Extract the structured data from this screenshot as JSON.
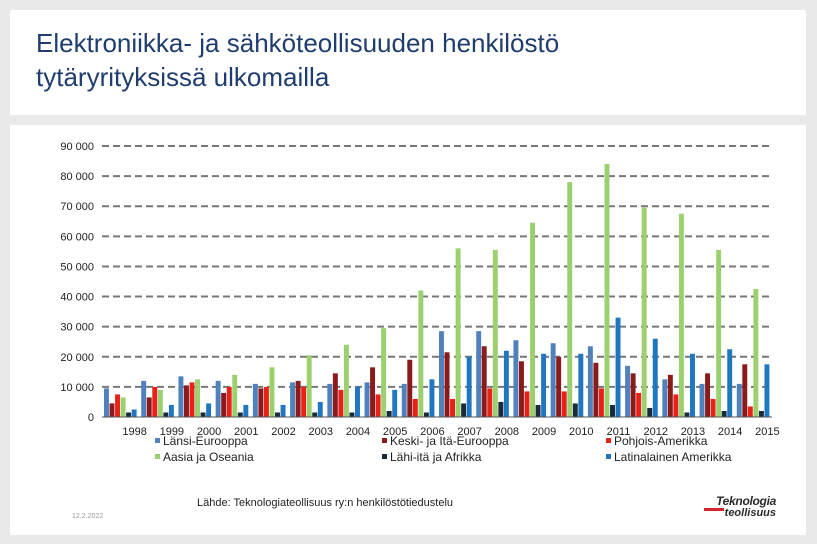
{
  "title_line1": "Elektroniikka- ja sähköteollisuuden henkilöstö",
  "title_line2": "tytäryrityksissä ulkomailla",
  "source": "Lähde: Teknologiateollisuus ry:n henkilöstötiedustelu",
  "date": "12.2.2022",
  "logo": {
    "line1": "Teknologia",
    "line2": "teollisuus"
  },
  "chart_data": {
    "type": "bar",
    "title": "",
    "xlabel": "",
    "ylabel": "",
    "ylim": [
      0,
      90000
    ],
    "yticks": [
      0,
      10000,
      20000,
      30000,
      40000,
      50000,
      60000,
      70000,
      80000,
      90000
    ],
    "ytick_labels": [
      "0",
      "10 000",
      "20 000",
      "30 000",
      "40 000",
      "50 000",
      "60 000",
      "70 000",
      "80 000",
      "90 000"
    ],
    "grid": true,
    "categories": [
      "1998",
      "1999",
      "2000",
      "2001",
      "2002",
      "2003",
      "2004",
      "2005",
      "2006",
      "2007",
      "2008",
      "2009",
      "2010",
      "2011",
      "2012",
      "2013",
      "2014",
      "2015"
    ],
    "series": [
      {
        "name": "Länsi-Eurooppa",
        "color": "#4f81bd",
        "values": [
          9500,
          12000,
          13500,
          12000,
          11000,
          11500,
          11000,
          11500,
          11000,
          28500,
          28500,
          25500,
          24500,
          23500,
          17000,
          12500,
          11000,
          11000
        ]
      },
      {
        "name": "Keski- ja Itä-Eurooppa",
        "color": "#8b1a1a",
        "values": [
          4500,
          6500,
          10500,
          8000,
          9500,
          12000,
          14500,
          16500,
          19000,
          21500,
          23500,
          18500,
          20000,
          18000,
          14500,
          14000,
          14500,
          17500
        ]
      },
      {
        "name": "Pohjois-Amerikka",
        "color": "#e8221b",
        "values": [
          7500,
          10000,
          11500,
          10000,
          10000,
          10000,
          9000,
          7500,
          6000,
          6000,
          9500,
          8500,
          8500,
          9500,
          8000,
          7500,
          6000,
          3500
        ]
      },
      {
        "name": "Aasia ja Oseania",
        "color": "#9bd06e",
        "values": [
          6500,
          9000,
          12500,
          14000,
          16500,
          20500,
          24000,
          29500,
          42000,
          56000,
          55500,
          64500,
          78000,
          84000,
          69500,
          67500,
          55500,
          42500
        ]
      },
      {
        "name": "Lähi-itä ja Afrikka",
        "color": "#1b2a3a",
        "values": [
          1500,
          1500,
          1500,
          1500,
          1500,
          1500,
          1500,
          2000,
          1500,
          4500,
          5000,
          4000,
          4500,
          4000,
          3000,
          1500,
          2000,
          2000
        ]
      },
      {
        "name": "Latinalainen Amerikka",
        "color": "#1f77c0",
        "values": [
          2500,
          4000,
          4500,
          4000,
          4000,
          5000,
          10000,
          9000,
          12500,
          20000,
          22000,
          21000,
          21000,
          33000,
          26000,
          21000,
          22500,
          17500
        ]
      }
    ],
    "legend": {
      "placement": "bottom"
    }
  }
}
